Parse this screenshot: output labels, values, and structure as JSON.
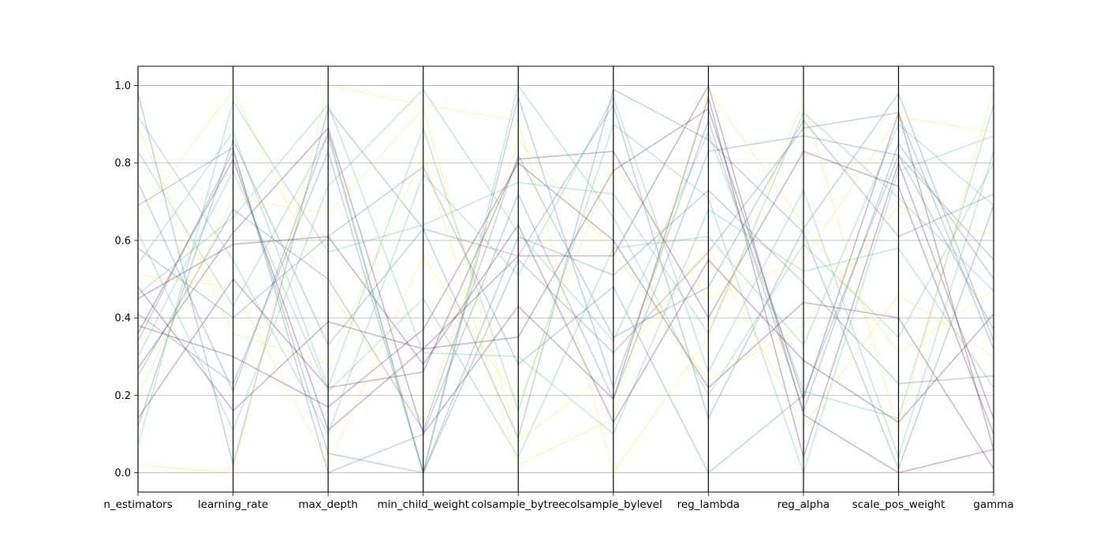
{
  "chart_data": {
    "type": "parallel_coordinates",
    "title": "",
    "axes": [
      "n_estimators",
      "learning_rate",
      "max_depth",
      "min_child_weight",
      "colsample_bytree",
      "colsample_bylevel",
      "reg_lambda",
      "reg_alpha",
      "scale_pos_weight",
      "gamma"
    ],
    "yticks": [
      "0.0",
      "0.2",
      "0.4",
      "0.6",
      "0.8",
      "1.0"
    ],
    "ylim": [
      -0.05,
      1.05
    ],
    "grid": true,
    "colormap": "viridis",
    "colors": [
      "#440154",
      "#31688e",
      "#35b779",
      "#fde725"
    ],
    "series": [
      {
        "color_index": 0,
        "values": [
          0.36,
          0.81,
          0.11,
          0.32,
          0.35,
          0.78,
          0.94,
          0.19,
          0.93,
          0.06
        ]
      },
      {
        "color_index": 0,
        "values": [
          0.14,
          0.5,
          0.22,
          0.26,
          0.81,
          0.83,
          0.4,
          0.83,
          0.74,
          0.1
        ]
      },
      {
        "color_index": 0,
        "values": [
          0.48,
          0.16,
          0.39,
          0.32,
          0.56,
          0.56,
          1.0,
          0.15,
          0.0,
          0.06
        ]
      },
      {
        "color_index": 0,
        "values": [
          0.38,
          0.3,
          0.17,
          0.37,
          0.8,
          0.6,
          0.22,
          0.44,
          0.4,
          0.01
        ]
      },
      {
        "color_index": 0,
        "values": [
          0.27,
          0.62,
          0.89,
          0.1,
          0.43,
          0.19,
          0.97,
          0.04,
          0.8,
          0.14
        ]
      },
      {
        "color_index": 0,
        "values": [
          0.45,
          0.59,
          0.61,
          0.28,
          0.64,
          0.13,
          0.55,
          0.29,
          0.13,
          0.41
        ]
      },
      {
        "color_index": 1,
        "values": [
          0.75,
          0.21,
          0.88,
          0.0,
          0.55,
          0.31,
          0.57,
          0.89,
          0.93,
          0.32
        ]
      },
      {
        "color_index": 1,
        "values": [
          0.98,
          0.02,
          0.94,
          0.63,
          0.09,
          0.99,
          0.86,
          0.62,
          0.01,
          0.69
        ]
      },
      {
        "color_index": 1,
        "values": [
          0.69,
          0.84,
          0.0,
          0.1,
          0.72,
          0.19,
          0.83,
          0.87,
          0.82,
          0.55
        ]
      },
      {
        "color_index": 1,
        "values": [
          0.58,
          0.4,
          0.61,
          0.79,
          0.28,
          0.48,
          0.0,
          0.2,
          0.82,
          0.37
        ]
      },
      {
        "color_index": 1,
        "values": [
          0.34,
          0.83,
          0.05,
          0.0,
          0.61,
          0.51,
          0.73,
          0.49,
          0.23,
          0.25
        ]
      },
      {
        "color_index": 1,
        "values": [
          0.12,
          0.86,
          0.33,
          0.63,
          0.56,
          0.95,
          0.14,
          0.63,
          0.98,
          0.34
        ]
      },
      {
        "color_index": 1,
        "values": [
          0.41,
          0.23,
          0.83,
          0.0,
          0.97,
          0.22,
          0.91,
          0.16,
          0.85,
          0.5
        ]
      },
      {
        "color_index": 1,
        "values": [
          0.25,
          0.68,
          0.5,
          0.11,
          0.82,
          0.35,
          0.48,
          0.91,
          0.61,
          0.72
        ]
      },
      {
        "color_index": 2,
        "values": [
          0.54,
          0.88,
          0.22,
          0.89,
          0.16,
          0.9,
          0.71,
          0.0,
          0.78,
          0.87
        ]
      },
      {
        "color_index": 2,
        "values": [
          0.83,
          0.43,
          0.87,
          0.0,
          1.0,
          0.66,
          0.2,
          0.59,
          0.35,
          0.8
        ]
      },
      {
        "color_index": 2,
        "values": [
          0.07,
          0.96,
          0.57,
          0.64,
          0.75,
          0.72,
          0.36,
          0.93,
          0.71,
          0.47
        ]
      },
      {
        "color_index": 2,
        "values": [
          0.62,
          0.11,
          0.74,
          0.99,
          0.62,
          0.34,
          0.88,
          0.21,
          0.14,
          0.95
        ]
      },
      {
        "color_index": 2,
        "values": [
          0.3,
          0.78,
          0.21,
          0.45,
          0.04,
          0.58,
          0.61,
          0.33,
          0.9,
          0.69
        ]
      },
      {
        "color_index": 2,
        "values": [
          0.92,
          0.55,
          0.1,
          0.77,
          0.51,
          0.97,
          0.26,
          0.73,
          0.04,
          0.83
        ]
      },
      {
        "color_index": 2,
        "values": [
          0.46,
          0.66,
          0.95,
          0.31,
          0.3,
          0.1,
          0.68,
          0.52,
          0.58,
          0.22
        ]
      },
      {
        "color_index": 3,
        "values": [
          0.02,
          0.0,
          1.0,
          0.95,
          0.91,
          0.0,
          0.35,
          0.96,
          0.11,
          0.99
        ]
      },
      {
        "color_index": 3,
        "values": [
          0.89,
          0.36,
          0.28,
          0.82,
          0.02,
          0.14,
          0.99,
          0.64,
          0.31,
          0.47
        ]
      },
      {
        "color_index": 3,
        "values": [
          0.66,
          0.99,
          0.47,
          0.13,
          0.86,
          0.57,
          0.24,
          0.38,
          0.69,
          0.61
        ]
      },
      {
        "color_index": 3,
        "values": [
          0.51,
          0.48,
          0.02,
          0.56,
          0.18,
          0.8,
          0.45,
          0.55,
          0.92,
          0.88
        ]
      },
      {
        "color_index": 3,
        "values": [
          0.2,
          0.71,
          0.67,
          0.94,
          0.08,
          0.27,
          0.58,
          0.12,
          0.46,
          0.3
        ]
      }
    ]
  }
}
